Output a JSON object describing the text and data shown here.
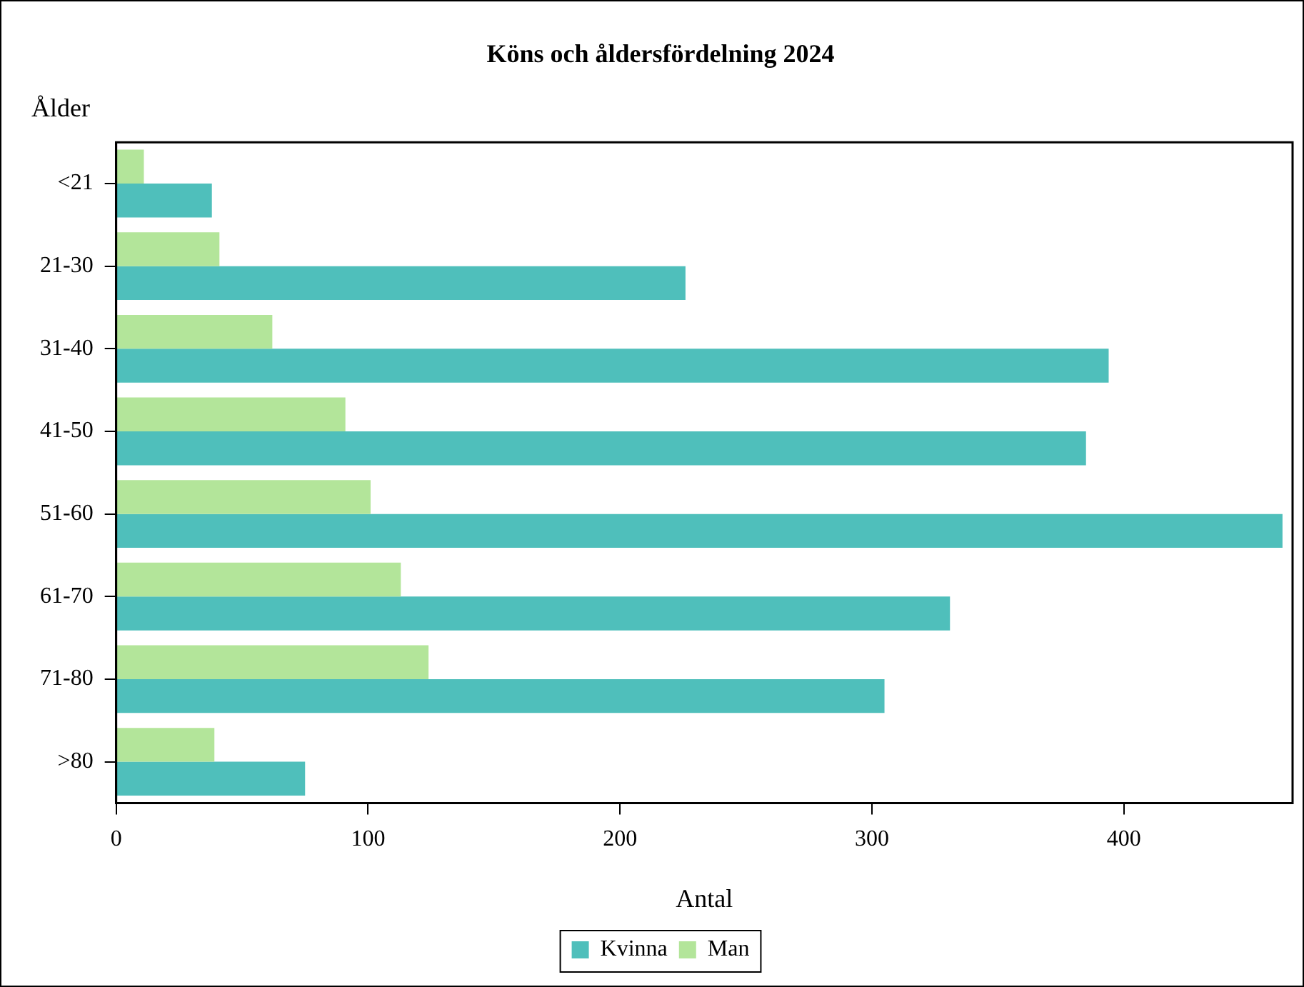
{
  "chart_data": {
    "type": "bar",
    "orientation": "horizontal",
    "title": "Köns och åldersfördelning 2024",
    "xlabel": "Antal",
    "ylabel": "Ålder",
    "categories": [
      "<21",
      "21-30",
      "31-40",
      "41-50",
      "51-60",
      "61-70",
      "71-80",
      ">80"
    ],
    "series": [
      {
        "name": "Kvinna",
        "color": "#4fbfbb",
        "values": [
          38,
          226,
          394,
          385,
          463,
          331,
          305,
          75
        ]
      },
      {
        "name": "Man",
        "color": "#b3e59a",
        "values": [
          11,
          41,
          62,
          91,
          101,
          113,
          124,
          39
        ]
      }
    ],
    "xlim": [
      0,
      467
    ],
    "xticks": [
      0,
      100,
      200,
      300,
      400
    ],
    "grid": false,
    "legend": "bottom"
  }
}
